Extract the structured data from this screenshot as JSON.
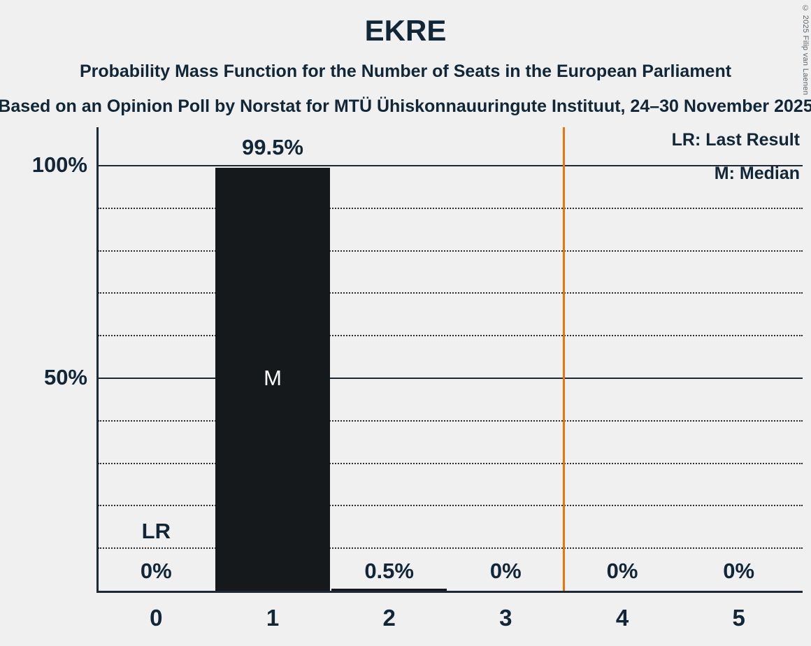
{
  "title": "EKRE",
  "subtitle": "Probability Mass Function for the Number of Seats in the European Parliament",
  "source_line": "Based on an Opinion Poll by Norstat for MTÜ Ühiskonnauuringute Instituut, 24–30 November 2025",
  "copyright": "© 2025 Filip van Laenen",
  "legend": {
    "lr": "LR: Last Result",
    "m": "M: Median"
  },
  "chart_data": {
    "type": "bar",
    "title": "EKRE",
    "categories": [
      "0",
      "1",
      "2",
      "3",
      "4",
      "5"
    ],
    "values": [
      0,
      99.5,
      0.5,
      0,
      0,
      0
    ],
    "value_labels": [
      "0%",
      "99.5%",
      "0.5%",
      "0%",
      "0%",
      "0%"
    ],
    "ylim": [
      0,
      100
    ],
    "ytick_labels": {
      "50": "50%",
      "100": "100%"
    },
    "gridlines_pct": [
      10,
      20,
      30,
      40,
      50,
      60,
      70,
      80,
      90,
      100
    ],
    "solid_gridlines": [
      50,
      100
    ],
    "grid": true,
    "legend_position": "top-right",
    "median_category": "1",
    "median_marker": "M",
    "last_result_category": "0",
    "last_result_marker": "LR",
    "vertical_line_x": 3.5,
    "bar_color": "#16191c",
    "vertical_line_color": "#e8740e",
    "background_color": "#f0f0f0",
    "text_color": "#112637"
  }
}
